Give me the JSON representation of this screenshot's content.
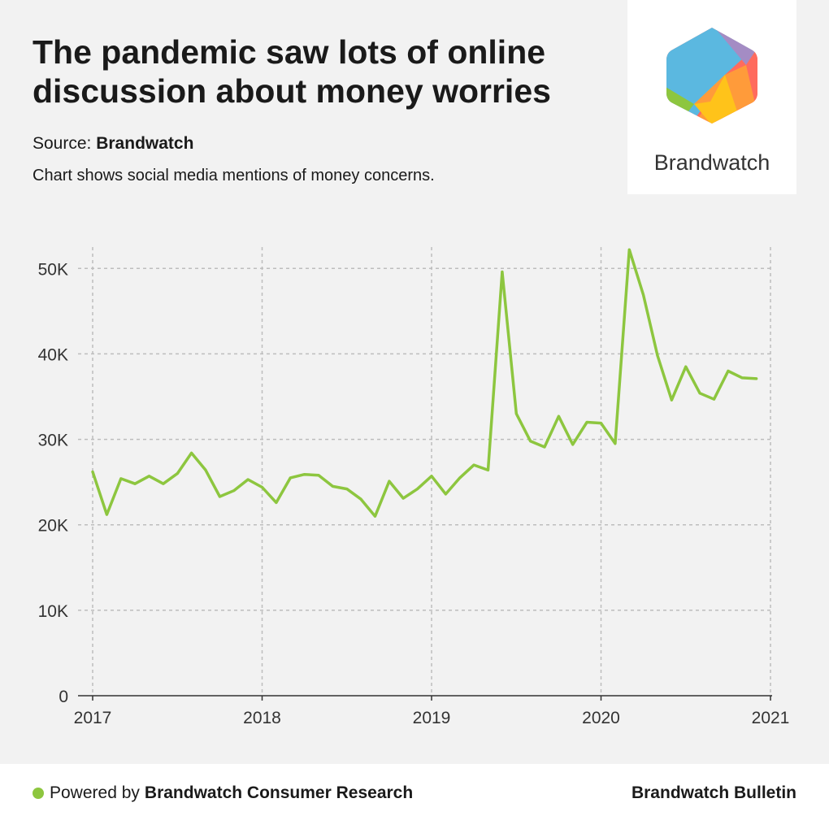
{
  "header": {
    "title_line1": "The pandemic saw lots of online",
    "title_line2": "discussion about money worries",
    "source_label": "Source:",
    "source_name": "Brandwatch",
    "subtitle": "Chart shows social media mentions of money concerns."
  },
  "logo": {
    "text": "Brandwatch",
    "colors": [
      "#5bb8e0",
      "#a48cc4",
      "#ff6b5e",
      "#ff9b3a",
      "#ffc31a",
      "#8dc63f"
    ]
  },
  "footer": {
    "powered_prefix": "Powered by",
    "powered_name": "Brandwatch Consumer Research",
    "brand": "Brandwatch Bulletin",
    "dot_color": "#8dc63f"
  },
  "chart_data": {
    "type": "line",
    "title": "",
    "xlabel": "",
    "ylabel": "",
    "xlim": [
      2017,
      2021
    ],
    "ylim": [
      0,
      52500
    ],
    "x_ticks": [
      2017,
      2018,
      2019,
      2020,
      2021
    ],
    "x_tick_labels": [
      "2017",
      "2018",
      "2019",
      "2020",
      "2021"
    ],
    "y_ticks": [
      0,
      10000,
      20000,
      30000,
      40000,
      50000
    ],
    "y_tick_labels": [
      "0",
      "10K",
      "20K",
      "30K",
      "40K",
      "50K"
    ],
    "grid": true,
    "line_color": "#8dc63f",
    "series": [
      {
        "values": [
          [
            "2017-01",
            26200
          ],
          [
            "2017-02",
            21200
          ],
          [
            "2017-03",
            25400
          ],
          [
            "2017-04",
            24800
          ],
          [
            "2017-05",
            25700
          ],
          [
            "2017-06",
            24800
          ],
          [
            "2017-07",
            26000
          ],
          [
            "2017-08",
            28400
          ],
          [
            "2017-09",
            26400
          ],
          [
            "2017-10",
            23300
          ],
          [
            "2017-11",
            24000
          ],
          [
            "2017-12",
            25300
          ],
          [
            "2018-01",
            24400
          ],
          [
            "2018-02",
            22600
          ],
          [
            "2018-03",
            25500
          ],
          [
            "2018-04",
            25900
          ],
          [
            "2018-05",
            25800
          ],
          [
            "2018-06",
            24500
          ],
          [
            "2018-07",
            24200
          ],
          [
            "2018-08",
            23000
          ],
          [
            "2018-09",
            21000
          ],
          [
            "2018-10",
            25100
          ],
          [
            "2018-11",
            23100
          ],
          [
            "2018-12",
            24200
          ],
          [
            "2019-01",
            25700
          ],
          [
            "2019-02",
            23600
          ],
          [
            "2019-03",
            25500
          ],
          [
            "2019-04",
            27000
          ],
          [
            "2019-05",
            26400
          ],
          [
            "2019-06",
            49600
          ],
          [
            "2019-07",
            33000
          ],
          [
            "2019-08",
            29800
          ],
          [
            "2019-09",
            29100
          ],
          [
            "2019-10",
            32700
          ],
          [
            "2019-11",
            29400
          ],
          [
            "2019-12",
            32000
          ],
          [
            "2020-01",
            31900
          ],
          [
            "2020-02",
            29500
          ],
          [
            "2020-03",
            52200
          ],
          [
            "2020-04",
            46900
          ],
          [
            "2020-05",
            39800
          ],
          [
            "2020-06",
            34600
          ],
          [
            "2020-07",
            38500
          ],
          [
            "2020-08",
            35400
          ],
          [
            "2020-09",
            34700
          ],
          [
            "2020-10",
            38000
          ],
          [
            "2020-11",
            37200
          ],
          [
            "2020-12",
            37100
          ]
        ]
      }
    ]
  }
}
